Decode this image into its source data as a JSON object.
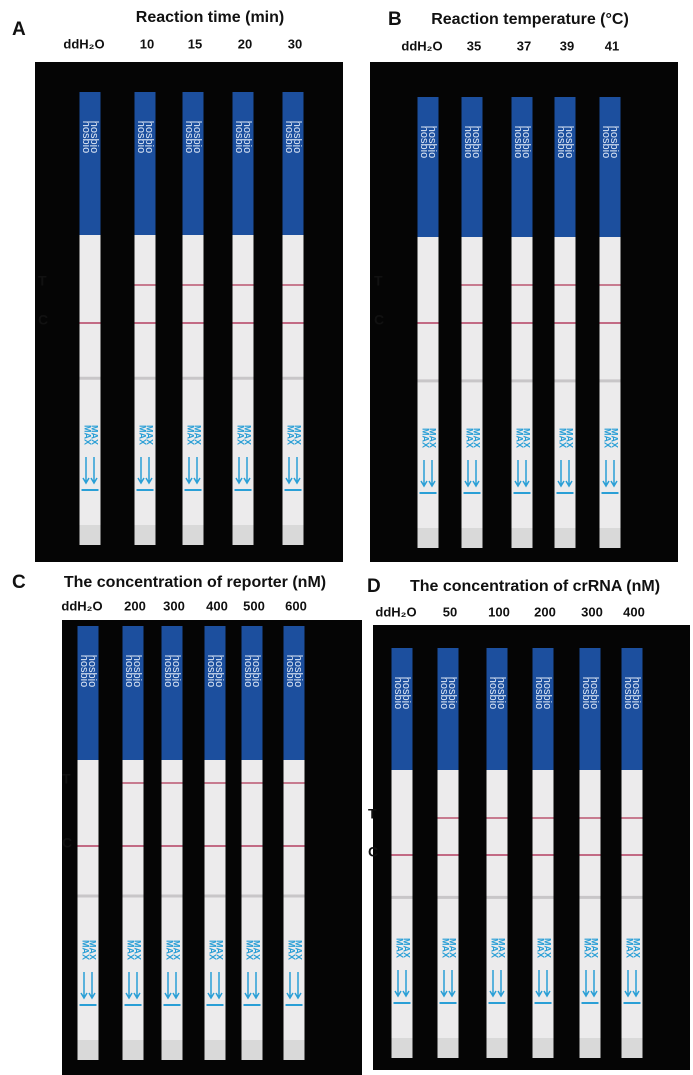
{
  "panels": [
    {
      "letter": "A",
      "title": "Reaction time (min)",
      "lanes": [
        "ddH₂O",
        "10",
        "15",
        "20",
        "30"
      ],
      "test_line": "T",
      "control_line": "C"
    },
    {
      "letter": "B",
      "title": "Reaction temperature (°C)",
      "lanes": [
        "ddH₂O",
        "35",
        "37",
        "39",
        "41"
      ],
      "test_line": "T",
      "control_line": "C"
    },
    {
      "letter": "C",
      "title": "The concentration of reporter (nM)",
      "lanes": [
        "ddH₂O",
        "200",
        "300",
        "400",
        "500",
        "600"
      ],
      "test_line": "T",
      "control_line": "C"
    },
    {
      "letter": "D",
      "title": "The concentration of crRNA (nM)",
      "lanes": [
        "ddH₂O",
        "50",
        "100",
        "200",
        "300",
        "400"
      ],
      "test_line": "T",
      "control_line": "C"
    }
  ],
  "strip_text": {
    "brand": "hosbio",
    "marker": "MAX"
  }
}
